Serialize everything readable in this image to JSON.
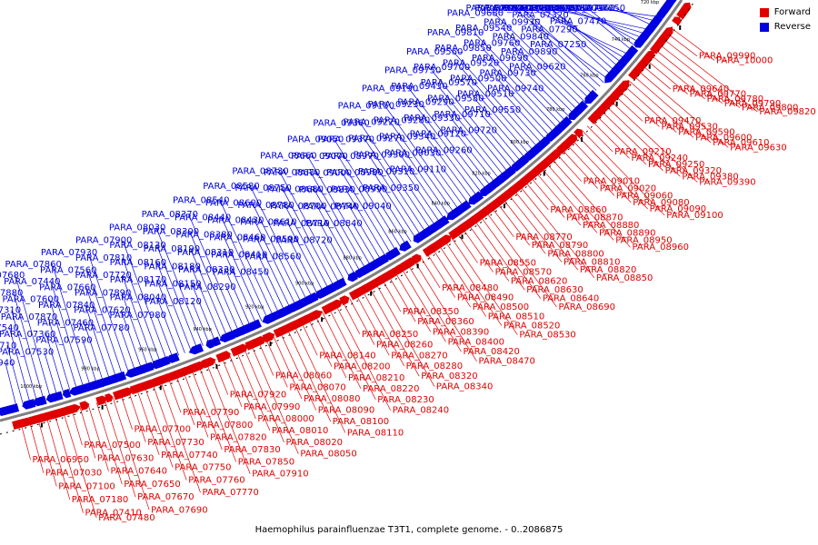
{
  "caption": "Haemophilus parainfluenzae T3T1, complete genome. - 0..2086875",
  "legend": {
    "forward": "Forward",
    "reverse": "Reverse"
  },
  "colors": {
    "forward": "#e00000",
    "reverse": "#0000e0",
    "backbone": "#808080",
    "tick": "#000000"
  },
  "ruler_labels": [
    "1000 kbp",
    "980 kbp",
    "960 kbp",
    "940 kbp",
    "920 kbp",
    "900 kbp",
    "880 kbp",
    "860 kbp",
    "840 kbp",
    "820 kbp",
    "800 kbp",
    "780 kbp",
    "760 kbp",
    "740 kbp",
    "720 kbp"
  ],
  "genes": {
    "forward": [
      "PARA_06950",
      "PARA_07030",
      "PARA_07100",
      "PARA_07180",
      "PARA_07410",
      "PARA_07480",
      "PARA_07500",
      "PARA_07630",
      "PARA_07640",
      "PARA_07650",
      "PARA_07670",
      "PARA_07690",
      "PARA_07700",
      "PARA_07730",
      "PARA_07740",
      "PARA_07750",
      "PARA_07760",
      "PARA_07770",
      "PARA_07790",
      "PARA_07800",
      "PARA_07820",
      "PARA_07830",
      "PARA_07850",
      "PARA_07910",
      "PARA_07920",
      "PARA_07990",
      "PARA_08000",
      "PARA_08010",
      "PARA_08020",
      "PARA_08050",
      "PARA_08060",
      "PARA_08070",
      "PARA_08080",
      "PARA_08090",
      "PARA_08100",
      "PARA_08110",
      "PARA_08140",
      "PARA_08200",
      "PARA_08210",
      "PARA_08220",
      "PARA_08230",
      "PARA_08240",
      "PARA_08250",
      "PARA_08260",
      "PARA_08270",
      "PARA_08280",
      "PARA_08320",
      "PARA_08340",
      "PARA_08350",
      "PARA_08360",
      "PARA_08390",
      "PARA_08400",
      "PARA_08420",
      "PARA_08470",
      "PARA_08480",
      "PARA_08490",
      "PARA_08500",
      "PARA_08510",
      "PARA_08520",
      "PARA_08530",
      "PARA_08550",
      "PARA_08570",
      "PARA_08620",
      "PARA_08630",
      "PARA_08640",
      "PARA_08690",
      "PARA_08770",
      "PARA_08790",
      "PARA_08800",
      "PARA_08810",
      "PARA_08820",
      "PARA_08850",
      "PARA_08860",
      "PARA_08870",
      "PARA_08880",
      "PARA_08890",
      "PARA_08950",
      "PARA_08960",
      "PARA_09010",
      "PARA_09020",
      "PARA_09060",
      "PARA_09080",
      "PARA_09090",
      "PARA_09100",
      "PARA_09210",
      "PARA_09240",
      "PARA_09250",
      "PARA_09320",
      "PARA_09380",
      "PARA_09390",
      "PARA_09470",
      "PARA_09530",
      "PARA_09590",
      "PARA_09600",
      "PARA_09610",
      "PARA_09630",
      "PARA_09640",
      "PARA_09770",
      "PARA_09780",
      "PARA_09790",
      "PARA_09800",
      "PARA_09820",
      "PARA_09990",
      "PARA_10000"
    ],
    "reverse": [
      "PARA_07940",
      "PARA_07710",
      "PARA_07540",
      "PARA_07310",
      "PARA_07880",
      "PARA_07680",
      "PARA_07530",
      "PARA_07360",
      "PARA_07870",
      "PARA_07600",
      "PARA_07440",
      "PARA_07860",
      "PARA_07590",
      "PARA_07460",
      "PARA_07840",
      "PARA_07660",
      "PARA_07560",
      "PARA_07930",
      "PARA_07780",
      "PARA_07620",
      "PARA_07890",
      "PARA_07720",
      "PARA_07810",
      "PARA_07900",
      "PARA_07980",
      "PARA_08040",
      "PARA_08170",
      "PARA_08160",
      "PARA_08130",
      "PARA_08030",
      "PARA_08120",
      "PARA_08150",
      "PARA_08180",
      "PARA_08190",
      "PARA_08300",
      "PARA_08370",
      "PARA_08290",
      "PARA_08330",
      "PARA_08310",
      "PARA_08380",
      "PARA_08440",
      "PARA_08540",
      "PARA_08450",
      "PARA_08410",
      "PARA_08460",
      "PARA_08430",
      "PARA_08600",
      "PARA_08580",
      "PARA_08560",
      "PARA_08590",
      "PARA_08610",
      "PARA_08780",
      "PARA_08750",
      "PARA_08730",
      "PARA_08720",
      "PARA_08710",
      "PARA_08700",
      "PARA_08680",
      "PARA_08670",
      "PARA_08660",
      "PARA_08840",
      "PARA_08740",
      "PARA_08830",
      "PARA_09000",
      "PARA_09070",
      "PARA_09050",
      "PARA_09040",
      "PARA_08990",
      "PARA_08980",
      "PARA_08970",
      "PARA_09370",
      "PARA_09360",
      "PARA_09350",
      "PARA_09310",
      "PARA_09300",
      "PARA_09270",
      "PARA_09220",
      "PARA_09150",
      "PARA_09110",
      "PARA_09030",
      "PARA_09340",
      "PARA_09280",
      "PARA_09230",
      "PARA_09190",
      "PARA_09260",
      "PARA_09120",
      "PARA_09330",
      "PARA_09290",
      "PARA_09430",
      "PARA_09750",
      "PARA_09720",
      "PARA_09710",
      "PARA_09580",
      "PARA_09570",
      "PARA_09700",
      "PARA_09560",
      "PARA_09550",
      "PARA_09510",
      "PARA_09500",
      "PARA_09520",
      "PARA_09850",
      "PARA_09810",
      "PARA_09740",
      "PARA_09730",
      "PARA_09690",
      "PARA_09760",
      "PARA_09540",
      "PARA_09680",
      "PARA_09620",
      "PARA_09890",
      "PARA_09840",
      "PARA_09930",
      "PARA_07210",
      "PARA_07160",
      "PARA_07250",
      "PARA_07290",
      "PARA_07320",
      "PARA_07350",
      "PARA_07390",
      "PARA_07420",
      "PARA_07470",
      "PARA_07520",
      "PARA_07550",
      "PARA_07570",
      "PARA_07580",
      "PARA_07610",
      "PARA_07950",
      "PARA_07960",
      "PARA_07970"
    ]
  }
}
